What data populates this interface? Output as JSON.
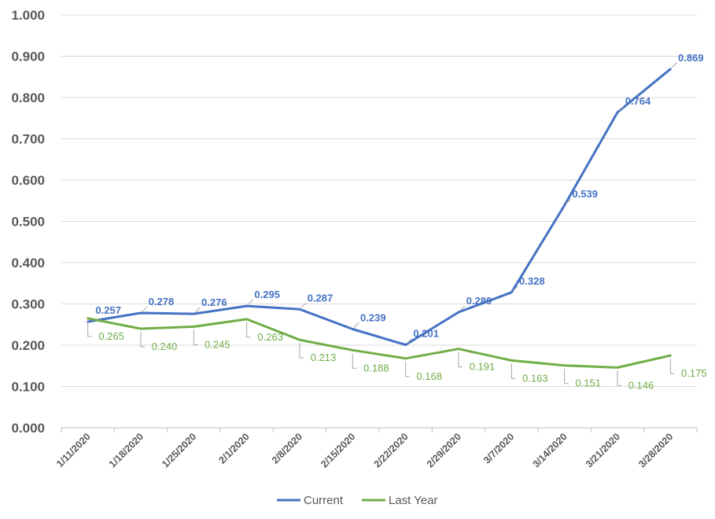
{
  "chart_data": {
    "type": "line",
    "title": "",
    "xlabel": "",
    "ylabel": "",
    "ylim": [
      0,
      1.0
    ],
    "yticks": [
      "0.000",
      "0.100",
      "0.200",
      "0.300",
      "0.400",
      "0.500",
      "0.600",
      "0.700",
      "0.800",
      "0.900",
      "1.000"
    ],
    "categories": [
      "1/11/2020",
      "1/18/2020",
      "1/25/2020",
      "2/1/2020",
      "2/8/2020",
      "2/15/2020",
      "2/22/2020",
      "2/29/2020",
      "3/7/2020",
      "3/14/2020",
      "3/21/2020",
      "3/28/2020"
    ],
    "grid": true,
    "legend_position": "bottom",
    "series": [
      {
        "name": "Current",
        "color": "#4472C4",
        "values": [
          0.257,
          0.278,
          0.276,
          0.295,
          0.287,
          0.239,
          0.201,
          0.28,
          0.328,
          0.539,
          0.764,
          0.869
        ],
        "labels": [
          "0.257",
          "0.278",
          "0.276",
          "0.295",
          "0.287",
          "0.239",
          "0.201",
          "0.280",
          "0.328",
          "0.539",
          "0.764",
          "0.869"
        ]
      },
      {
        "name": "Last Year",
        "color": "#70AD47",
        "values": [
          0.265,
          0.24,
          0.245,
          0.263,
          0.213,
          0.188,
          0.168,
          0.191,
          0.163,
          0.151,
          0.146,
          0.175
        ],
        "labels": [
          "0.265",
          "0.240",
          "0.245",
          "0.263",
          "0.213",
          "0.188",
          "0.168",
          "0.191",
          "0.163",
          "0.151",
          "0.146",
          "0.175"
        ]
      }
    ]
  }
}
